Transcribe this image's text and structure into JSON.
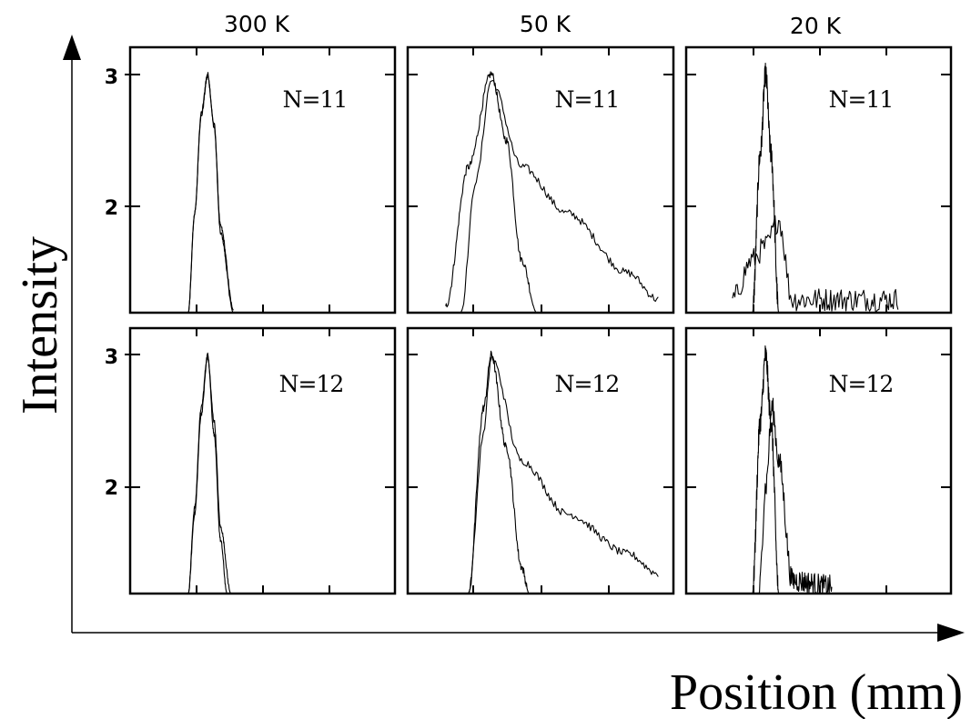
{
  "figure": {
    "x_axis_title": "Position (mm)",
    "y_axis_title": "Intensity",
    "column_titles": [
      "300  K",
      "50  K",
      "20  K"
    ],
    "y_tick_labels": [
      "3",
      "2"
    ],
    "panel_labels": [
      "N=11",
      "N=11",
      "N=11",
      "N=12",
      "N=12",
      "N=12"
    ]
  },
  "chart_data": [
    {
      "type": "line",
      "panel": "300 K, N=11",
      "ylim": [
        1.2,
        3.2
      ],
      "series": [
        {
          "x": [
            -0.15,
            -0.1,
            -0.05,
            0,
            0.05,
            0.1,
            0.2
          ],
          "y": [
            1.2,
            1.95,
            2.7,
            3.0,
            2.6,
            1.8,
            1.2
          ]
        },
        {
          "x": [
            -0.15,
            -0.1,
            -0.05,
            0,
            0.05,
            0.1,
            0.2
          ],
          "y": [
            1.2,
            1.95,
            2.68,
            2.98,
            2.62,
            1.85,
            1.22
          ]
        }
      ]
    },
    {
      "type": "line",
      "panel": "50 K, N=11",
      "ylim": [
        1.2,
        3.2
      ],
      "series": [
        {
          "x": [
            -0.3,
            -0.15,
            0,
            0.1,
            0.2,
            0.3
          ],
          "y": [
            1.25,
            2.3,
            3.0,
            2.5,
            1.6,
            1.2
          ]
        },
        {
          "x": [
            -0.2,
            -0.1,
            0,
            0.2,
            0.5,
            0.9,
            1.1
          ],
          "y": [
            1.2,
            2.2,
            2.95,
            2.3,
            1.95,
            1.5,
            1.3
          ]
        }
      ]
    },
    {
      "type": "line",
      "panel": "20 K, N=11",
      "ylim": [
        1.2,
        3.2
      ],
      "series": [
        {
          "x": [
            -0.1,
            -0.04,
            0,
            0.04,
            0.1
          ],
          "y": [
            1.2,
            2.4,
            3.0,
            2.4,
            1.2
          ]
        },
        {
          "x": [
            -0.25,
            -0.1,
            0,
            0.1,
            0.2,
            0.6,
            1.0
          ],
          "y": [
            1.3,
            1.6,
            1.7,
            1.9,
            1.3,
            1.3,
            1.3
          ]
        }
      ]
    },
    {
      "type": "line",
      "panel": "300 K, N=12",
      "ylim": [
        1.2,
        3.2
      ],
      "series": [
        {
          "x": [
            -0.15,
            -0.1,
            -0.05,
            0,
            0.05,
            0.1,
            0.15
          ],
          "y": [
            1.2,
            1.85,
            2.6,
            3.0,
            2.4,
            1.6,
            1.2
          ]
        },
        {
          "x": [
            -0.15,
            -0.1,
            -0.05,
            0,
            0.05,
            0.1,
            0.18
          ],
          "y": [
            1.2,
            1.8,
            2.55,
            2.98,
            2.5,
            1.7,
            1.2
          ]
        }
      ]
    },
    {
      "type": "line",
      "panel": "50 K, N=12",
      "ylim": [
        1.2,
        3.2
      ],
      "series": [
        {
          "x": [
            -0.15,
            -0.05,
            0,
            0.1,
            0.2,
            0.25
          ],
          "y": [
            1.2,
            2.6,
            3.0,
            2.3,
            1.4,
            1.2
          ]
        },
        {
          "x": [
            -0.15,
            -0.05,
            0,
            0.2,
            0.5,
            0.9,
            1.1
          ],
          "y": [
            1.2,
            2.4,
            2.98,
            2.2,
            1.8,
            1.5,
            1.35
          ]
        }
      ]
    },
    {
      "type": "line",
      "panel": "20 K, N=12",
      "ylim": [
        1.2,
        3.2
      ],
      "series": [
        {
          "x": [
            -0.1,
            -0.04,
            0,
            0.04,
            0.1
          ],
          "y": [
            1.2,
            2.5,
            3.0,
            2.5,
            1.2
          ]
        },
        {
          "x": [
            -0.05,
            0,
            0.05,
            0.1,
            0.2,
            0.5
          ],
          "y": [
            1.2,
            2.0,
            2.6,
            2.2,
            1.3,
            1.25
          ]
        }
      ]
    }
  ]
}
